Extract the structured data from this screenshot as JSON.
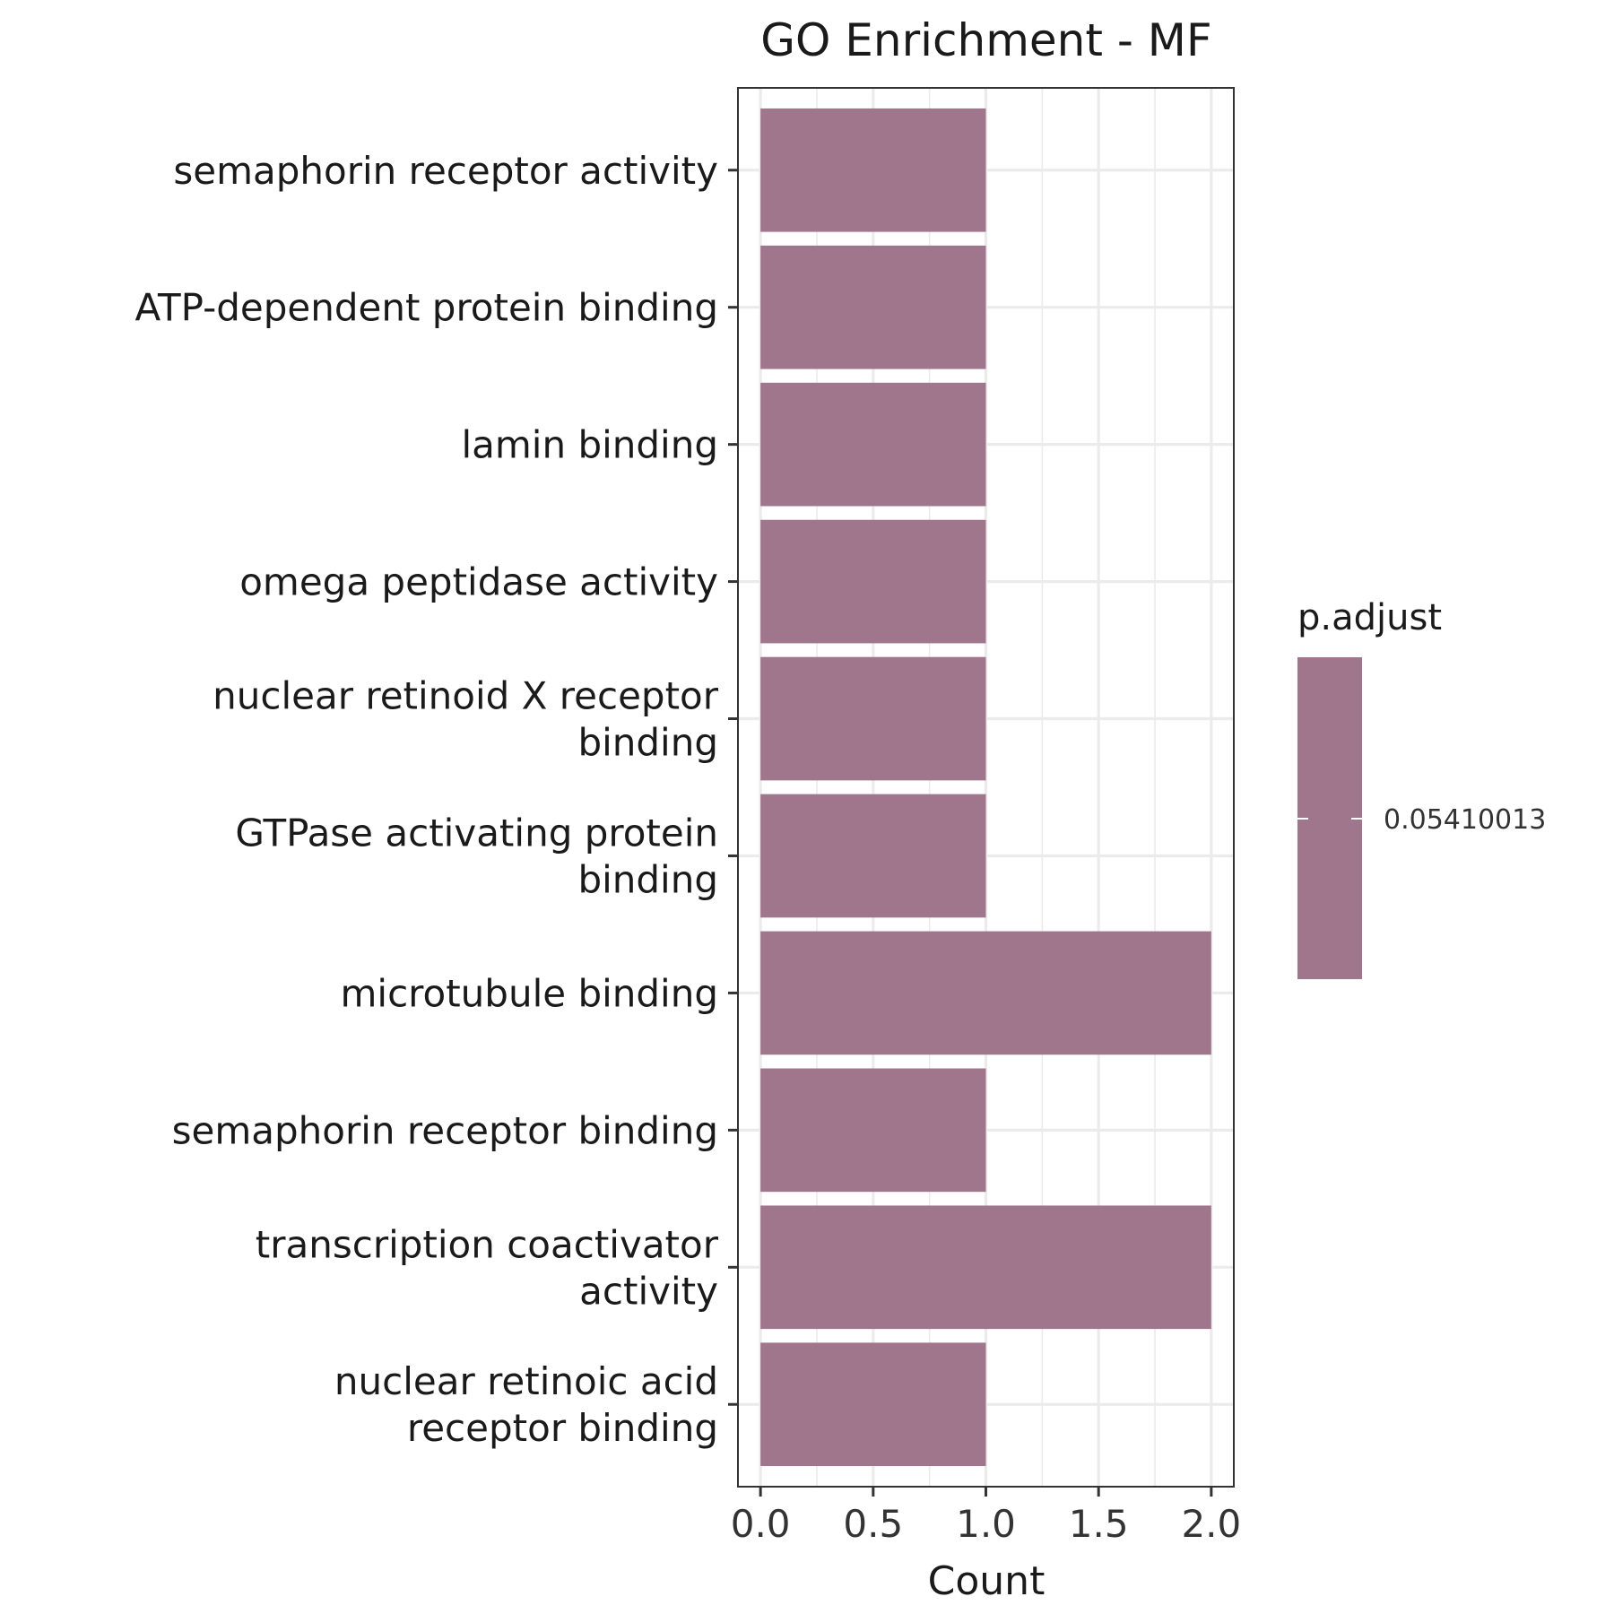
{
  "chart_data": {
    "type": "bar",
    "orientation": "horizontal",
    "title": "GO Enrichment - MF",
    "xlabel": "Count",
    "ylabel": "",
    "xlim": [
      -0.1,
      2.1
    ],
    "x_ticks": [
      "0.0",
      "0.5",
      "1.0",
      "1.5",
      "2.0"
    ],
    "x_tick_values": [
      0,
      0.5,
      1.0,
      1.5,
      2.0
    ],
    "grid": true,
    "categories": [
      [
        "semaphorin receptor activity"
      ],
      [
        "ATP-dependent protein binding"
      ],
      [
        "lamin binding"
      ],
      [
        "omega peptidase activity"
      ],
      [
        "nuclear retinoid X receptor",
        "binding"
      ],
      [
        "GTPase activating protein",
        "binding"
      ],
      [
        "microtubule binding"
      ],
      [
        "semaphorin receptor binding"
      ],
      [
        "transcription coactivator",
        "activity"
      ],
      [
        "nuclear retinoic acid",
        "receptor binding"
      ]
    ],
    "values": [
      1,
      1,
      1,
      1,
      1,
      1,
      2,
      1,
      2,
      1
    ],
    "bar_color": "#a0768c",
    "legend": {
      "title": "p.adjust",
      "labels": [
        "0.05410013"
      ],
      "color": "#a0768c",
      "placement": "right"
    }
  }
}
